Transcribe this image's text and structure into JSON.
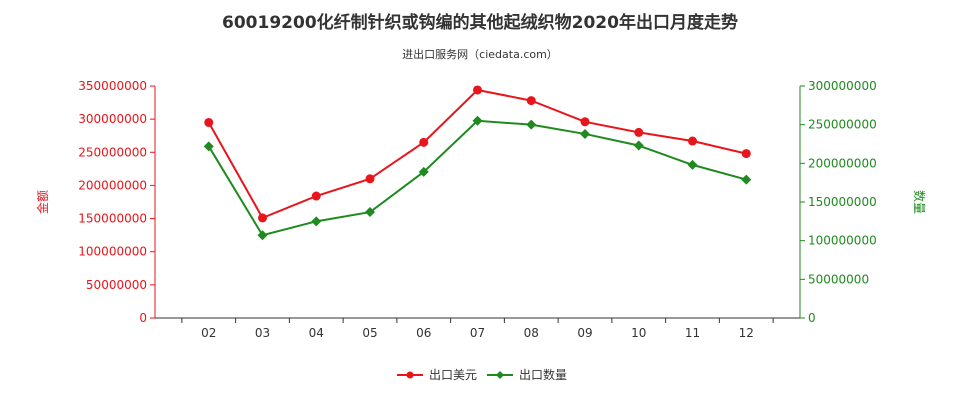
{
  "chart_data": {
    "type": "line",
    "title": "60019200化纤制针织或钩编的其他起绒织物2020年出口月度走势",
    "subtitle": "进出口服务网（ciedata.com）",
    "categories": [
      "02",
      "03",
      "04",
      "05",
      "06",
      "07",
      "08",
      "09",
      "10",
      "11",
      "12"
    ],
    "y_left": {
      "label": "金额",
      "ylim": [
        0,
        350000000
      ],
      "ticks": [
        "0",
        "50000000",
        "100000000",
        "150000000",
        "200000000",
        "250000000",
        "300000000",
        "350000000"
      ],
      "color": "#e8151b"
    },
    "y_right": {
      "label": "数量",
      "ylim": [
        0,
        300000000
      ],
      "ticks": [
        "0",
        "50000000",
        "100000000",
        "150000000",
        "200000000",
        "250000000",
        "300000000"
      ],
      "color": "#1f8a1f"
    },
    "series": [
      {
        "name": "出口美元",
        "axis": "left",
        "color": "#e8151b",
        "marker": "circle",
        "values": [
          295000000,
          151000000,
          184000000,
          210000000,
          265000000,
          344000000,
          328000000,
          296000000,
          280000000,
          267000000,
          248000000
        ]
      },
      {
        "name": "出口数量",
        "axis": "right",
        "color": "#1f8a1f",
        "marker": "diamond",
        "values": [
          222000000,
          107000000,
          125000000,
          137000000,
          189000000,
          255000000,
          250000000,
          238000000,
          223000000,
          198000000,
          179000000
        ]
      }
    ],
    "grid": false,
    "legend_position": "bottom-center"
  }
}
